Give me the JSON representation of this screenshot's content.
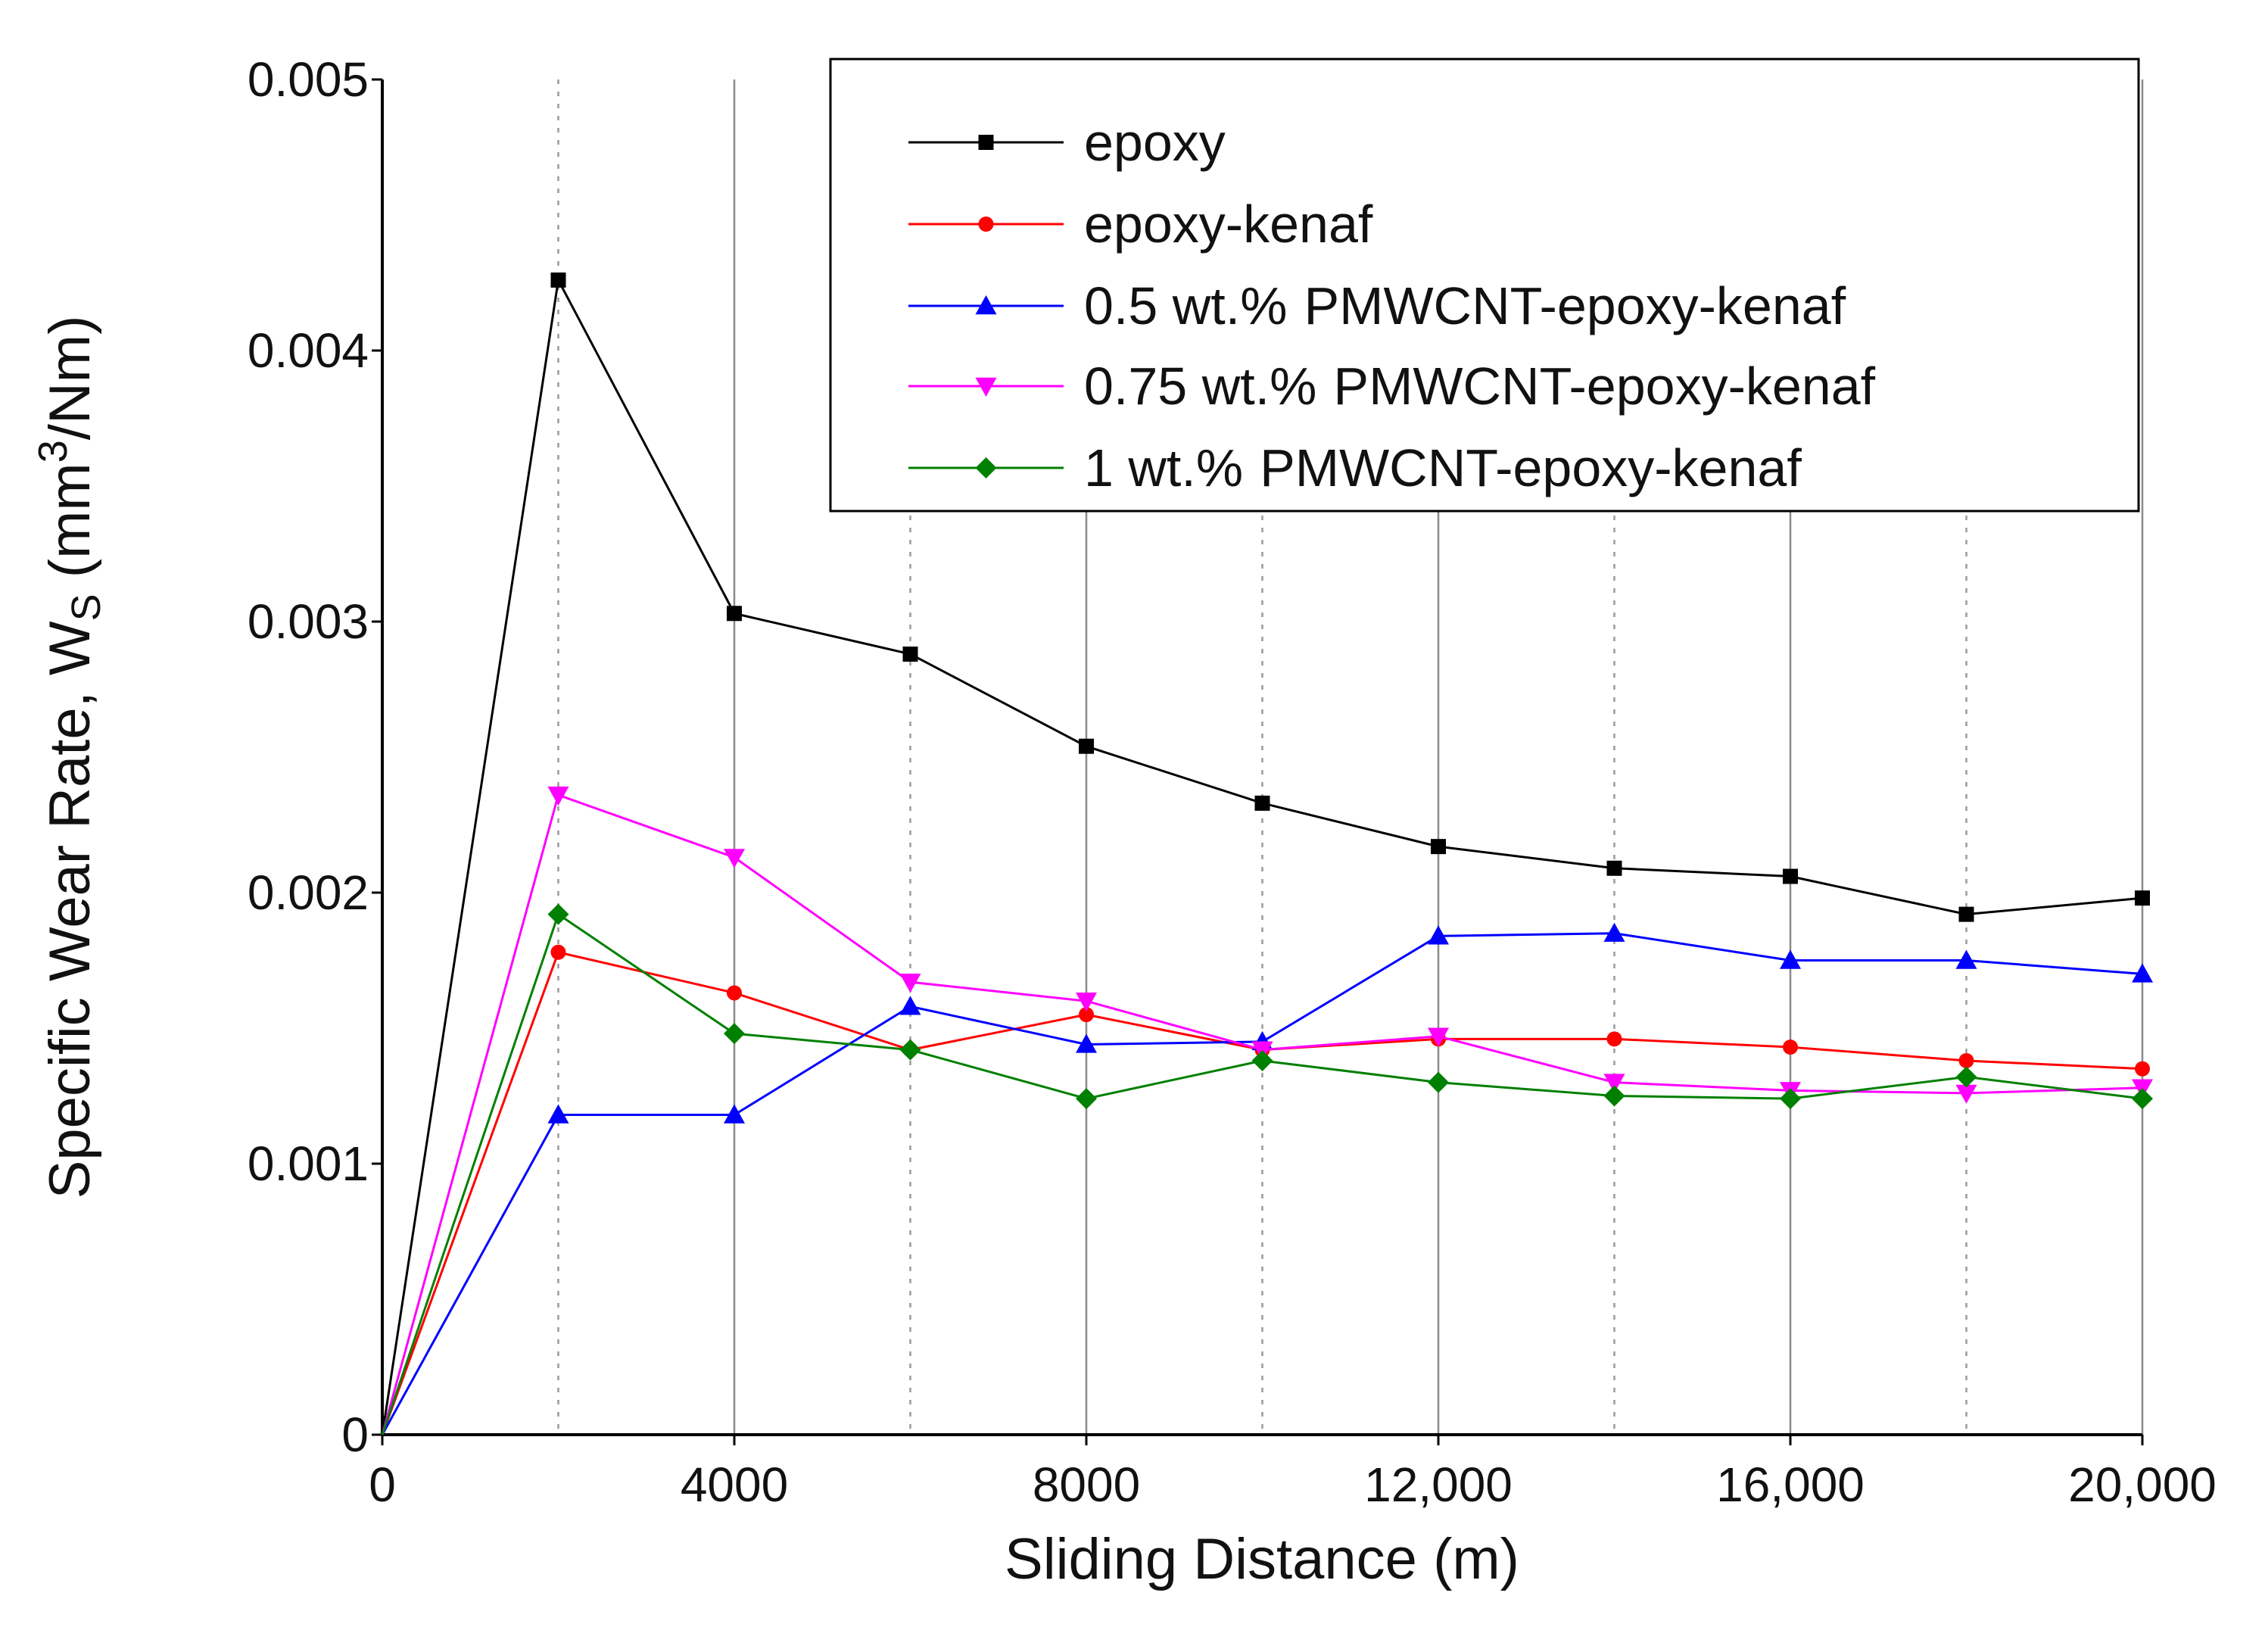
{
  "chart_data": {
    "type": "line",
    "title": "",
    "xlabel": "Sliding Distance (m)",
    "ylabel": {
      "prefix": "Specific Wear Rate, W",
      "subscript": "S",
      "unit_open": " (mm",
      "superscript": "3",
      "unit_close": "/Nm)"
    },
    "xlim": [
      0,
      20000
    ],
    "ylim": [
      0,
      0.005
    ],
    "x_ticks": [
      {
        "value": 0,
        "label": "0"
      },
      {
        "value": 4000,
        "label": "4000"
      },
      {
        "value": 8000,
        "label": "8000"
      },
      {
        "value": 12000,
        "label": "12,000"
      },
      {
        "value": 16000,
        "label": "16,000"
      },
      {
        "value": 20000,
        "label": "20,000"
      }
    ],
    "y_ticks": [
      {
        "value": 0,
        "label": "0"
      },
      {
        "value": 0.001,
        "label": "0.001"
      },
      {
        "value": 0.002,
        "label": "0.002"
      },
      {
        "value": 0.003,
        "label": "0.003"
      },
      {
        "value": 0.004,
        "label": "0.004"
      },
      {
        "value": 0.005,
        "label": "0.005"
      }
    ],
    "grid": {
      "solid_x": [
        4000,
        8000,
        12000,
        16000,
        20000
      ],
      "dotted_x": [
        2000,
        6000,
        10000,
        14000,
        18000
      ]
    },
    "legend_position": "top-right",
    "x": [
      0,
      2000,
      4000,
      6000,
      8000,
      10000,
      12000,
      14000,
      16000,
      18000,
      20000
    ],
    "series": [
      {
        "name": "epoxy",
        "legend_parts": [
          "epoxy"
        ],
        "color": "#000000",
        "marker": "square",
        "values": [
          0,
          0.00426,
          0.00303,
          0.00288,
          0.00254,
          0.00233,
          0.00217,
          0.00209,
          0.00206,
          0.00192,
          0.00198
        ]
      },
      {
        "name": "epoxy-kenaf",
        "legend_parts": [
          "epoxy-kenaf"
        ],
        "color": "#ff0000",
        "marker": "circle",
        "values": [
          0,
          0.00178,
          0.00163,
          0.00142,
          0.00155,
          0.00142,
          0.00146,
          0.00146,
          0.00143,
          0.00138,
          0.00135
        ]
      },
      {
        "name": "0.5 wt.% PMWCNT-epoxy-kenaf",
        "legend_parts": [
          "0.5 wt.%",
          "PMWCNT-epoxy-kenaf"
        ],
        "color": "#0000ff",
        "marker": "triangle-up",
        "values": [
          0,
          0.00118,
          0.00118,
          0.00158,
          0.00144,
          0.00145,
          0.00184,
          0.00185,
          0.00175,
          0.00175,
          0.0017
        ]
      },
      {
        "name": "0.75 wt.% PMWCNT-epoxy-kenaf",
        "legend_parts": [
          "0.75 wt.%",
          "PMWCNT-epoxy-kenaf"
        ],
        "color": "#ff00ff",
        "marker": "triangle-down",
        "values": [
          0,
          0.00236,
          0.00213,
          0.00167,
          0.0016,
          0.00142,
          0.00147,
          0.0013,
          0.00127,
          0.00126,
          0.00128
        ]
      },
      {
        "name": "1 wt.% PMWCNT-epoxy-kenaf",
        "legend_parts": [
          "1 wt.%",
          "PMWCNT-epoxy-kenaf"
        ],
        "color": "#008000",
        "marker": "diamond",
        "values": [
          0,
          0.00192,
          0.00148,
          0.00142,
          0.00124,
          0.00138,
          0.0013,
          0.00125,
          0.00124,
          0.00132,
          0.00124
        ]
      }
    ]
  }
}
